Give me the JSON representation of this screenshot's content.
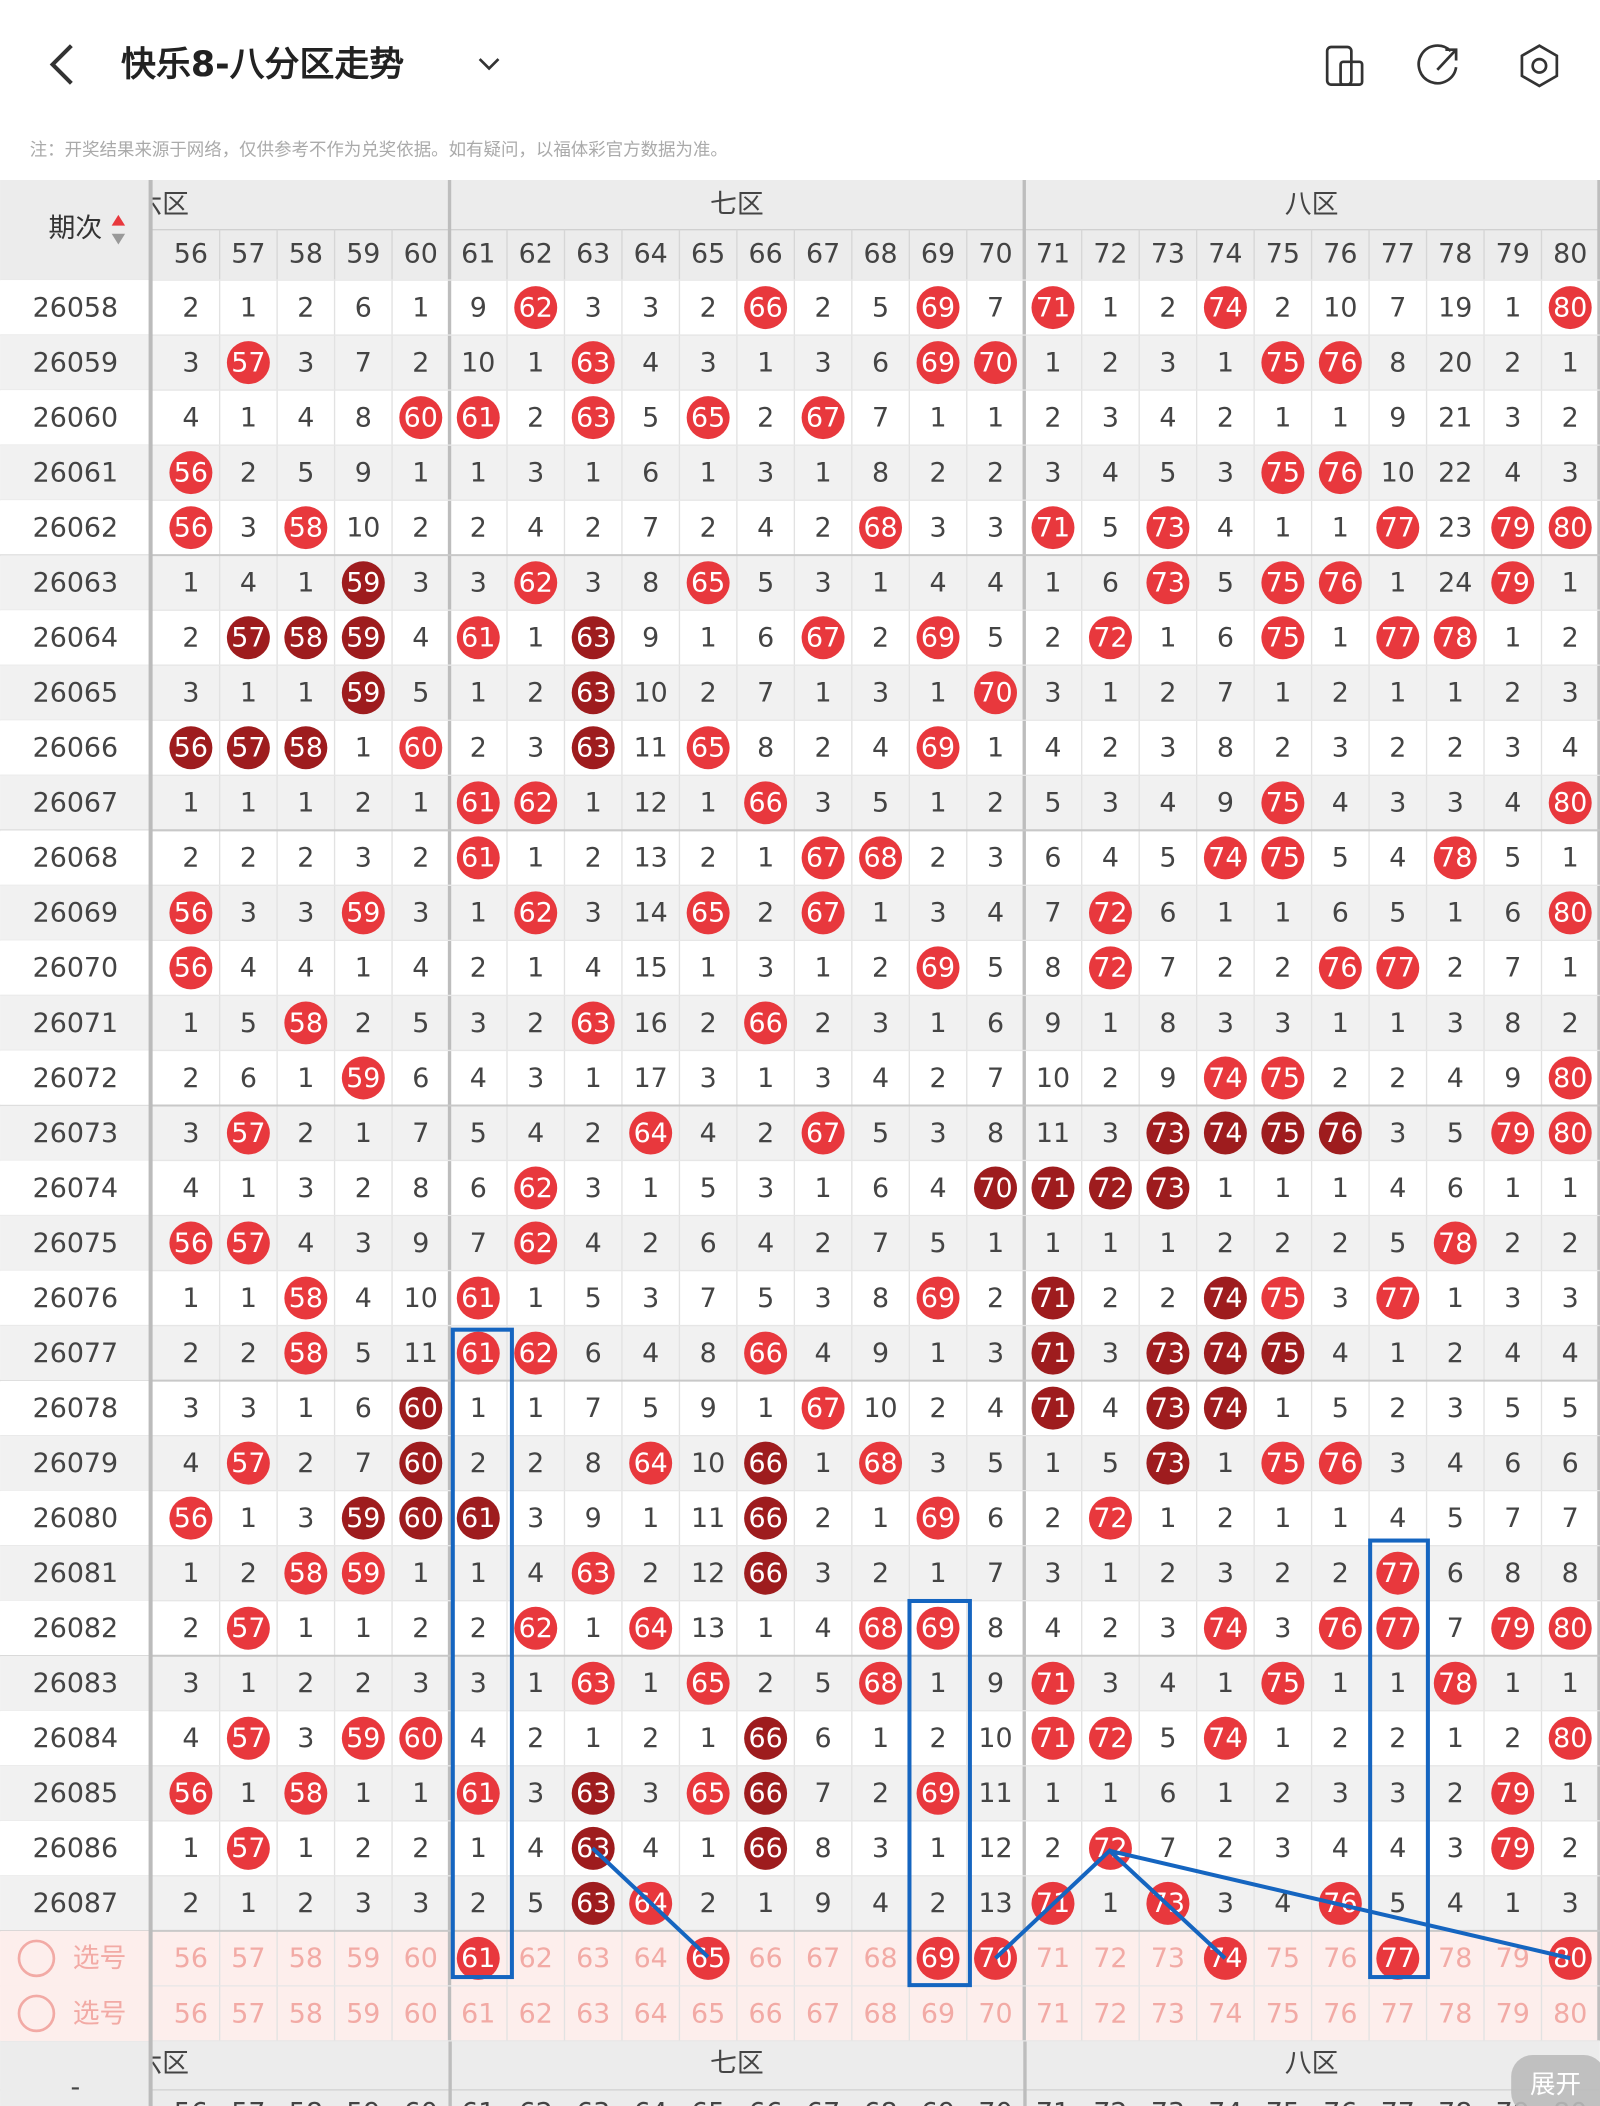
{
  "header": {
    "title": "快乐8-八分区走势"
  },
  "note": "注：开奖结果来源于网络，仅供参考不作为兑奖依据。如有疑问，以福体彩官方数据为准。",
  "table": {
    "issue_header": "期次",
    "zones": [
      "六区",
      "七区",
      "八区"
    ],
    "columns": [
      "56",
      "57",
      "58",
      "59",
      "60",
      "61",
      "62",
      "63",
      "64",
      "65",
      "66",
      "67",
      "68",
      "69",
      "70",
      "71",
      "72",
      "73",
      "74",
      "75",
      "76",
      "77",
      "78",
      "79",
      "80"
    ],
    "rows": [
      {
        "issue": "26058",
        "cells": [
          "2",
          "1",
          "2",
          "6",
          "1",
          "9",
          "62",
          "3",
          "3",
          "2",
          "66",
          "2",
          "5",
          "69",
          "7",
          "71",
          "1",
          "2",
          "74",
          "2",
          "10",
          "7",
          "19",
          "1",
          "80"
        ]
      },
      {
        "issue": "26059",
        "cells": [
          "3",
          "57",
          "3",
          "7",
          "2",
          "10",
          "1",
          "63",
          "4",
          "3",
          "1",
          "3",
          "6",
          "69",
          "70",
          "1",
          "2",
          "3",
          "1",
          "75",
          "76",
          "8",
          "20",
          "2",
          "1"
        ]
      },
      {
        "issue": "26060",
        "cells": [
          "4",
          "1",
          "4",
          "8",
          "60",
          "61",
          "2",
          "63",
          "5",
          "65",
          "2",
          "67",
          "7",
          "1",
          "1",
          "2",
          "3",
          "4",
          "2",
          "1",
          "1",
          "9",
          "21",
          "3",
          "2"
        ]
      },
      {
        "issue": "26061",
        "cells": [
          "56",
          "2",
          "5",
          "9",
          "1",
          "1",
          "3",
          "1",
          "6",
          "1",
          "3",
          "1",
          "8",
          "2",
          "2",
          "3",
          "4",
          "5",
          "3",
          "75",
          "76",
          "10",
          "22",
          "4",
          "3"
        ]
      },
      {
        "issue": "26062",
        "cells": [
          "56",
          "3",
          "58",
          "10",
          "2",
          "2",
          "4",
          "2",
          "7",
          "2",
          "4",
          "2",
          "68",
          "3",
          "3",
          "71",
          "5",
          "73",
          "4",
          "1",
          "1",
          "77",
          "23",
          "79",
          "80"
        ]
      },
      {
        "issue": "26063",
        "cells": [
          "1",
          "4",
          "1",
          "59",
          "3",
          "3",
          "62",
          "3",
          "8",
          "65",
          "5",
          "3",
          "1",
          "4",
          "4",
          "1",
          "6",
          "73",
          "5",
          "75",
          "76",
          "1",
          "24",
          "79",
          "1"
        ]
      },
      {
        "issue": "26064",
        "cells": [
          "2",
          "57",
          "58",
          "59",
          "4",
          "61",
          "1",
          "63",
          "9",
          "1",
          "6",
          "67",
          "2",
          "69",
          "5",
          "2",
          "72",
          "1",
          "6",
          "75",
          "1",
          "77",
          "78",
          "1",
          "2"
        ]
      },
      {
        "issue": "26065",
        "cells": [
          "3",
          "1",
          "1",
          "59",
          "5",
          "1",
          "2",
          "63",
          "10",
          "2",
          "7",
          "1",
          "3",
          "1",
          "70",
          "3",
          "1",
          "2",
          "7",
          "1",
          "2",
          "1",
          "1",
          "2",
          "3"
        ]
      },
      {
        "issue": "26066",
        "cells": [
          "56",
          "57",
          "58",
          "1",
          "60",
          "2",
          "3",
          "63",
          "11",
          "65",
          "8",
          "2",
          "4",
          "69",
          "1",
          "4",
          "2",
          "3",
          "8",
          "2",
          "3",
          "2",
          "2",
          "3",
          "4"
        ]
      },
      {
        "issue": "26067",
        "cells": [
          "1",
          "1",
          "1",
          "2",
          "1",
          "61",
          "62",
          "1",
          "12",
          "1",
          "66",
          "3",
          "5",
          "1",
          "2",
          "5",
          "3",
          "4",
          "9",
          "75",
          "4",
          "3",
          "3",
          "4",
          "80"
        ]
      },
      {
        "issue": "26068",
        "cells": [
          "2",
          "2",
          "2",
          "3",
          "2",
          "61",
          "1",
          "2",
          "13",
          "2",
          "1",
          "67",
          "68",
          "2",
          "3",
          "6",
          "4",
          "5",
          "74",
          "75",
          "5",
          "4",
          "78",
          "5",
          "1"
        ]
      },
      {
        "issue": "26069",
        "cells": [
          "56",
          "3",
          "3",
          "59",
          "3",
          "1",
          "62",
          "3",
          "14",
          "65",
          "2",
          "67",
          "1",
          "3",
          "4",
          "7",
          "72",
          "6",
          "1",
          "1",
          "6",
          "5",
          "1",
          "6",
          "80"
        ]
      },
      {
        "issue": "26070",
        "cells": [
          "56",
          "4",
          "4",
          "1",
          "4",
          "2",
          "1",
          "4",
          "15",
          "1",
          "3",
          "1",
          "2",
          "69",
          "5",
          "8",
          "72",
          "7",
          "2",
          "2",
          "76",
          "77",
          "2",
          "7",
          "1"
        ]
      },
      {
        "issue": "26071",
        "cells": [
          "1",
          "5",
          "58",
          "2",
          "5",
          "3",
          "2",
          "63",
          "16",
          "2",
          "66",
          "2",
          "3",
          "1",
          "6",
          "9",
          "1",
          "8",
          "3",
          "3",
          "1",
          "1",
          "3",
          "8",
          "2"
        ]
      },
      {
        "issue": "26072",
        "cells": [
          "2",
          "6",
          "1",
          "59",
          "6",
          "4",
          "3",
          "1",
          "17",
          "3",
          "1",
          "3",
          "4",
          "2",
          "7",
          "10",
          "2",
          "9",
          "74",
          "75",
          "2",
          "2",
          "4",
          "9",
          "80"
        ]
      },
      {
        "issue": "26073",
        "cells": [
          "3",
          "57",
          "2",
          "1",
          "7",
          "5",
          "4",
          "2",
          "64",
          "4",
          "2",
          "67",
          "5",
          "3",
          "8",
          "11",
          "3",
          "73",
          "74",
          "75",
          "76",
          "3",
          "5",
          "79",
          "80"
        ]
      },
      {
        "issue": "26074",
        "cells": [
          "4",
          "1",
          "3",
          "2",
          "8",
          "6",
          "62",
          "3",
          "1",
          "5",
          "3",
          "1",
          "6",
          "4",
          "70",
          "71",
          "72",
          "73",
          "1",
          "1",
          "1",
          "4",
          "6",
          "1",
          "1"
        ]
      },
      {
        "issue": "26075",
        "cells": [
          "56",
          "57",
          "4",
          "3",
          "9",
          "7",
          "62",
          "4",
          "2",
          "6",
          "4",
          "2",
          "7",
          "5",
          "1",
          "1",
          "1",
          "1",
          "2",
          "2",
          "2",
          "5",
          "78",
          "2",
          "2"
        ]
      },
      {
        "issue": "26076",
        "cells": [
          "1",
          "1",
          "58",
          "4",
          "10",
          "61",
          "1",
          "5",
          "3",
          "7",
          "5",
          "3",
          "8",
          "69",
          "2",
          "71",
          "2",
          "2",
          "74",
          "75",
          "3",
          "77",
          "1",
          "3",
          "3"
        ]
      },
      {
        "issue": "26077",
        "cells": [
          "2",
          "2",
          "58",
          "5",
          "11",
          "61",
          "62",
          "6",
          "4",
          "8",
          "66",
          "4",
          "9",
          "1",
          "3",
          "71",
          "3",
          "73",
          "74",
          "75",
          "4",
          "1",
          "2",
          "4",
          "4"
        ]
      },
      {
        "issue": "26078",
        "cells": [
          "3",
          "3",
          "1",
          "6",
          "60",
          "1",
          "1",
          "7",
          "5",
          "9",
          "1",
          "67",
          "10",
          "2",
          "4",
          "71",
          "4",
          "73",
          "74",
          "1",
          "5",
          "2",
          "3",
          "5",
          "5"
        ]
      },
      {
        "issue": "26079",
        "cells": [
          "4",
          "57",
          "2",
          "7",
          "60",
          "2",
          "2",
          "8",
          "64",
          "10",
          "66",
          "1",
          "68",
          "3",
          "5",
          "1",
          "5",
          "73",
          "1",
          "75",
          "76",
          "3",
          "4",
          "6",
          "6"
        ]
      },
      {
        "issue": "26080",
        "cells": [
          "56",
          "1",
          "3",
          "59",
          "60",
          "61",
          "3",
          "9",
          "1",
          "11",
          "66",
          "2",
          "1",
          "69",
          "6",
          "2",
          "72",
          "1",
          "2",
          "1",
          "1",
          "4",
          "5",
          "7",
          "7"
        ]
      },
      {
        "issue": "26081",
        "cells": [
          "1",
          "2",
          "58",
          "59",
          "1",
          "1",
          "4",
          "63",
          "2",
          "12",
          "66",
          "3",
          "2",
          "1",
          "7",
          "3",
          "1",
          "2",
          "3",
          "2",
          "2",
          "77",
          "6",
          "8",
          "8"
        ]
      },
      {
        "issue": "26082",
        "cells": [
          "2",
          "57",
          "1",
          "1",
          "2",
          "2",
          "62",
          "1",
          "64",
          "13",
          "1",
          "4",
          "68",
          "69",
          "8",
          "4",
          "2",
          "3",
          "74",
          "3",
          "76",
          "77",
          "7",
          "79",
          "80"
        ]
      },
      {
        "issue": "26083",
        "cells": [
          "3",
          "1",
          "2",
          "2",
          "3",
          "3",
          "1",
          "63",
          "1",
          "65",
          "2",
          "5",
          "68",
          "1",
          "9",
          "71",
          "3",
          "4",
          "1",
          "75",
          "1",
          "1",
          "78",
          "1",
          "1"
        ]
      },
      {
        "issue": "26084",
        "cells": [
          "4",
          "57",
          "3",
          "59",
          "60",
          "4",
          "2",
          "1",
          "2",
          "1",
          "66",
          "6",
          "1",
          "2",
          "10",
          "71",
          "72",
          "5",
          "74",
          "1",
          "2",
          "2",
          "1",
          "2",
          "80"
        ]
      },
      {
        "issue": "26085",
        "cells": [
          "56",
          "1",
          "58",
          "1",
          "1",
          "61",
          "3",
          "63",
          "3",
          "65",
          "66",
          "7",
          "2",
          "69",
          "11",
          "1",
          "1",
          "6",
          "1",
          "2",
          "3",
          "3",
          "2",
          "79",
          "1"
        ]
      },
      {
        "issue": "26086",
        "cells": [
          "1",
          "57",
          "1",
          "2",
          "2",
          "1",
          "4",
          "63",
          "4",
          "1",
          "66",
          "8",
          "3",
          "1",
          "12",
          "2",
          "72",
          "7",
          "2",
          "3",
          "4",
          "4",
          "3",
          "79",
          "2"
        ]
      },
      {
        "issue": "26087",
        "cells": [
          "2",
          "1",
          "2",
          "3",
          "3",
          "2",
          "5",
          "63",
          "64",
          "2",
          "1",
          "9",
          "4",
          "2",
          "13",
          "71",
          "1",
          "73",
          "3",
          "4",
          "76",
          "5",
          "4",
          "1",
          "3"
        ]
      }
    ]
  },
  "select_rows": [
    {
      "label": "选号",
      "numbers": [
        "56",
        "57",
        "58",
        "59",
        "60",
        "61",
        "62",
        "63",
        "64",
        "65",
        "66",
        "67",
        "68",
        "69",
        "70",
        "71",
        "72",
        "73",
        "74",
        "75",
        "76",
        "77",
        "78",
        "79",
        "80"
      ],
      "selected": [
        "61",
        "65",
        "69",
        "70",
        "74",
        "77",
        "80"
      ]
    },
    {
      "label": "选号",
      "numbers": [
        "56",
        "57",
        "58",
        "59",
        "60",
        "61",
        "62",
        "63",
        "64",
        "65",
        "66",
        "67",
        "68",
        "69",
        "70",
        "71",
        "72",
        "73",
        "74",
        "75",
        "76",
        "77",
        "78",
        "79",
        "80"
      ],
      "selected": []
    }
  ],
  "footer": {
    "collapse": "-",
    "expand": "展开"
  }
}
